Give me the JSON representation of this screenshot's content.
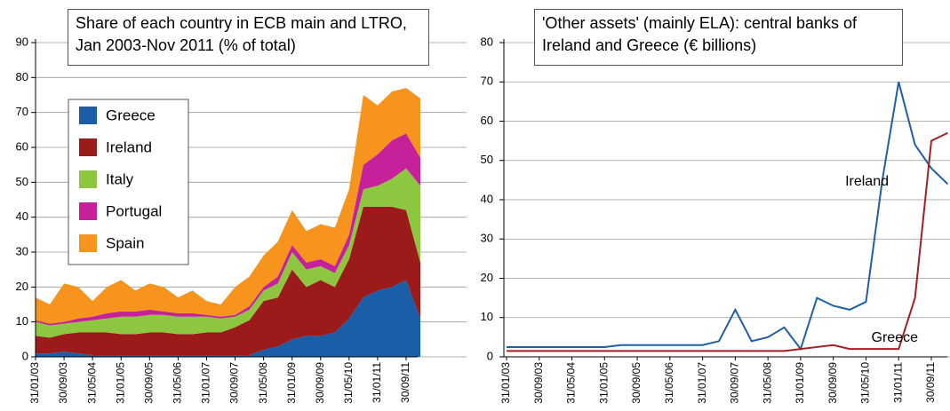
{
  "chart_data": [
    {
      "type": "area",
      "stacked": true,
      "title": "Share of each country in ECB main and LTRO, Jan 2003-Nov 2011 (% of total)",
      "categories": [
        "31/01/03",
        null,
        "30/09/03",
        null,
        "31/05/04",
        null,
        "31/01/05",
        null,
        "30/09/05",
        null,
        "31/05/06",
        null,
        "31/01/07",
        null,
        "30/09/07",
        null,
        "31/05/08",
        null,
        "31/01/09",
        null,
        "30/09/09",
        null,
        "31/05/10",
        null,
        "31/01/11",
        null,
        "30/09/11",
        null
      ],
      "series": [
        {
          "name": "Greece",
          "color": "#1a5ea8",
          "values": [
            1,
            1,
            1.5,
            1,
            0.5,
            0.5,
            0.5,
            0.5,
            0.5,
            0.5,
            0.5,
            0.5,
            0.5,
            0.5,
            0.5,
            0.5,
            2,
            3,
            5,
            6,
            6,
            7,
            11,
            17,
            19,
            20,
            22,
            11
          ]
        },
        {
          "name": "Ireland",
          "color": "#9b1b1b",
          "values": [
            5,
            4.5,
            5,
            6,
            6.5,
            6.5,
            6,
            6,
            6.5,
            6.5,
            6,
            6,
            6.5,
            6.5,
            8,
            10,
            14,
            14,
            20,
            14,
            16,
            13,
            17,
            26,
            24,
            23,
            20,
            16
          ]
        },
        {
          "name": "Italy",
          "color": "#8dc63f",
          "values": [
            4,
            3.5,
            3,
            3,
            3.5,
            4,
            5,
            5,
            5,
            5,
            5,
            5,
            4.5,
            4,
            3,
            3,
            3,
            4,
            5,
            5,
            4,
            4,
            4,
            5,
            6,
            8,
            12,
            22
          ]
        },
        {
          "name": "Portugal",
          "color": "#c6219b",
          "values": [
            0.5,
            0.5,
            0.5,
            1,
            1,
            1.5,
            1.5,
            1.5,
            1.5,
            1,
            1,
            1,
            0.5,
            0.5,
            0.5,
            1,
            1,
            2,
            2,
            2,
            2,
            2,
            3,
            7,
            9,
            11,
            10,
            8
          ]
        },
        {
          "name": "Spain",
          "color": "#f7941d",
          "values": [
            6.5,
            5.5,
            11,
            9,
            4.5,
            7.5,
            9,
            6,
            7.5,
            7,
            4.5,
            6.5,
            4,
            3.5,
            8,
            8.5,
            9,
            10,
            10,
            9,
            10,
            11,
            13,
            20,
            14,
            14,
            13,
            17
          ]
        }
      ],
      "ylim": [
        0,
        90
      ],
      "yticks": [
        0,
        10,
        20,
        30,
        40,
        50,
        60,
        70,
        80,
        90
      ],
      "grid": true,
      "legend": "upper left"
    },
    {
      "type": "line",
      "title": "'Other assets' (mainly ELA): central banks of Ireland and Greece (€ billions)",
      "categories": [
        "31/01/03",
        null,
        "30/09/03",
        null,
        "31/05/04",
        null,
        "31/01/05",
        null,
        "30/09/05",
        null,
        "31/05/06",
        null,
        "31/01/07",
        null,
        "30/09/07",
        null,
        "31/05/08",
        null,
        "31/01/09",
        null,
        "30/09/09",
        null,
        "31/05/10",
        null,
        "31/01/11",
        null,
        "30/09/11",
        null
      ],
      "series": [
        {
          "name": "Ireland",
          "color": "#1f5fa8",
          "values": [
            2.5,
            2.5,
            2.5,
            2.5,
            2.5,
            2.5,
            2.5,
            3,
            3,
            3,
            3,
            3,
            3,
            4,
            12,
            4,
            5,
            7.5,
            2,
            15,
            13,
            12,
            14,
            45,
            70,
            54,
            48,
            44
          ]
        },
        {
          "name": "Greece",
          "color": "#a31f24",
          "values": [
            1.5,
            1.5,
            1.5,
            1.5,
            1.5,
            1.5,
            1.5,
            1.5,
            1.5,
            1.5,
            1.5,
            1.5,
            1.5,
            1.5,
            1.5,
            1.5,
            1.5,
            1.5,
            2,
            2.5,
            3,
            2,
            2,
            2,
            2,
            15,
            55,
            57
          ]
        }
      ],
      "ylim": [
        0,
        80
      ],
      "yticks": [
        0,
        10,
        20,
        30,
        40,
        50,
        60,
        70,
        80
      ],
      "grid": true
    }
  ]
}
